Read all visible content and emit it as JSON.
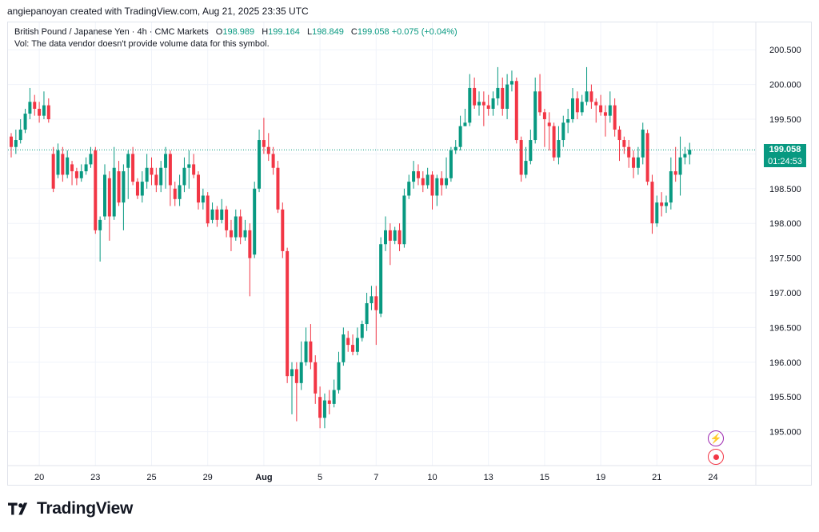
{
  "header": {
    "created": "angiepanoyan created with TradingView.com, Aug 21, 2025 23:35 UTC"
  },
  "legend": {
    "symbol": "British Pound / Japanese Yen · 4h · CMC Markets",
    "open_label": "O",
    "open": "198.989",
    "high_label": "H",
    "high": "199.164",
    "low_label": "L",
    "low": "198.849",
    "close_label": "C",
    "close": "199.058",
    "change": "+0.075 (+0.04%)",
    "volume_note": "Vol: The data vendor doesn't provide volume data for this symbol."
  },
  "price_tag": {
    "price": "199.058",
    "timer": "01:24:53"
  },
  "logo": {
    "text": "TradingView"
  },
  "icons": {
    "alert": "flash-icon",
    "record": "record-icon"
  },
  "colors": {
    "up": "#089981",
    "down": "#f23645",
    "grid": "#f0f3fa",
    "text": "#131722"
  },
  "chart_data": {
    "type": "candlestick",
    "title": "British Pound / Japanese Yen · 4h · CMC Markets",
    "ylim": [
      194.6,
      200.8
    ],
    "y_ticks": [
      "200.500",
      "200.000",
      "199.500",
      "199.000",
      "198.500",
      "198.000",
      "197.500",
      "197.000",
      "196.500",
      "196.000",
      "195.500",
      "195.000"
    ],
    "x_ticks": [
      {
        "label": "20",
        "t": 6
      },
      {
        "label": "23",
        "t": 18
      },
      {
        "label": "25",
        "t": 30
      },
      {
        "label": "29",
        "t": 42
      },
      {
        "label": "Aug",
        "t": 54
      },
      {
        "label": "5",
        "t": 66
      },
      {
        "label": "7",
        "t": 78
      },
      {
        "label": "10",
        "t": 90
      },
      {
        "label": "13",
        "t": 102
      },
      {
        "label": "15",
        "t": 114
      },
      {
        "label": "19",
        "t": 126
      },
      {
        "label": "21",
        "t": 138
      },
      {
        "label": "24",
        "t": 150
      }
    ],
    "last_price": 199.058,
    "candles": [
      [
        199.25,
        199.1,
        199.3,
        198.95
      ],
      [
        199.1,
        199.2,
        199.35,
        199.0
      ],
      [
        199.2,
        199.35,
        199.5,
        199.15
      ],
      [
        199.35,
        199.58,
        199.65,
        199.3
      ],
      [
        199.58,
        199.75,
        199.95,
        199.5
      ],
      [
        199.75,
        199.65,
        199.85,
        199.55
      ],
      [
        199.65,
        199.55,
        199.75,
        199.45
      ],
      [
        199.55,
        199.7,
        199.9,
        199.5
      ],
      [
        199.7,
        199.5,
        199.8,
        199.45
      ],
      [
        199.0,
        198.5,
        199.1,
        198.45
      ],
      [
        198.7,
        199.05,
        199.15,
        198.65
      ],
      [
        199.0,
        198.7,
        199.1,
        198.6
      ],
      [
        198.7,
        198.95,
        199.05,
        198.65
      ],
      [
        198.85,
        198.75,
        198.9,
        198.55
      ],
      [
        198.75,
        198.65,
        198.8,
        198.55
      ],
      [
        198.65,
        198.75,
        198.85,
        198.6
      ],
      [
        198.75,
        198.85,
        198.95,
        198.7
      ],
      [
        198.85,
        199.0,
        199.1,
        198.8
      ],
      [
        199.05,
        197.9,
        199.1,
        197.85
      ],
      [
        197.9,
        198.05,
        198.1,
        197.45
      ],
      [
        198.1,
        198.7,
        198.85,
        198.05
      ],
      [
        198.65,
        198.1,
        198.75,
        197.75
      ],
      [
        198.1,
        198.8,
        199.1,
        198.05
      ],
      [
        198.75,
        198.3,
        198.9,
        198.25
      ],
      [
        198.3,
        198.75,
        198.85,
        197.9
      ],
      [
        198.8,
        199.0,
        199.05,
        198.35
      ],
      [
        199.0,
        198.6,
        199.1,
        198.55
      ],
      [
        198.6,
        198.4,
        198.65,
        198.35
      ],
      [
        198.4,
        198.6,
        198.75,
        198.3
      ],
      [
        198.6,
        198.8,
        199.0,
        198.5
      ],
      [
        198.8,
        198.7,
        198.95,
        198.55
      ],
      [
        198.7,
        198.55,
        198.8,
        198.45
      ],
      [
        198.55,
        198.8,
        198.9,
        198.45
      ],
      [
        198.8,
        199.0,
        199.1,
        198.5
      ],
      [
        199.0,
        198.55,
        199.05,
        198.25
      ],
      [
        198.5,
        198.35,
        198.6,
        198.25
      ],
      [
        198.35,
        198.55,
        198.7,
        198.25
      ],
      [
        198.55,
        198.8,
        198.95,
        198.45
      ],
      [
        198.8,
        198.85,
        199.05,
        198.5
      ],
      [
        198.85,
        198.7,
        199.0,
        198.65
      ],
      [
        198.7,
        198.3,
        198.75,
        198.2
      ],
      [
        198.3,
        198.4,
        198.5,
        198.2
      ],
      [
        198.4,
        198.0,
        198.45,
        197.95
      ],
      [
        198.05,
        198.2,
        198.3,
        198.0
      ],
      [
        198.2,
        198.05,
        198.25,
        197.95
      ],
      [
        198.05,
        198.2,
        198.35,
        198.0
      ],
      [
        198.2,
        197.9,
        198.25,
        197.8
      ],
      [
        197.9,
        197.8,
        198.05,
        197.6
      ],
      [
        197.8,
        198.1,
        198.2,
        197.75
      ],
      [
        198.1,
        197.8,
        198.2,
        197.7
      ],
      [
        197.8,
        197.9,
        198.05,
        197.75
      ],
      [
        197.9,
        197.5,
        198.0,
        196.95
      ],
      [
        197.55,
        198.5,
        198.6,
        197.5
      ],
      [
        198.5,
        199.2,
        199.35,
        198.45
      ],
      [
        199.2,
        199.1,
        199.52,
        199.0
      ],
      [
        199.1,
        199.0,
        199.3,
        198.9
      ],
      [
        199.0,
        198.8,
        199.1,
        198.7
      ],
      [
        198.8,
        198.2,
        198.9,
        198.15
      ],
      [
        198.2,
        197.6,
        198.3,
        197.5
      ],
      [
        197.6,
        195.8,
        197.65,
        195.7
      ],
      [
        195.8,
        195.9,
        196.0,
        195.25
      ],
      [
        195.9,
        195.7,
        196.0,
        195.15
      ],
      [
        195.7,
        196.0,
        196.3,
        195.6
      ],
      [
        196.0,
        196.3,
        196.5,
        195.95
      ],
      [
        196.3,
        196.0,
        196.55,
        195.9
      ],
      [
        196.0,
        195.55,
        196.1,
        195.4
      ],
      [
        195.5,
        195.2,
        195.65,
        195.05
      ],
      [
        195.2,
        195.45,
        195.55,
        195.05
      ],
      [
        195.45,
        195.4,
        195.6,
        195.25
      ],
      [
        195.4,
        195.6,
        195.75,
        195.35
      ],
      [
        195.6,
        196.0,
        196.15,
        195.55
      ],
      [
        196.0,
        196.4,
        196.5,
        195.95
      ],
      [
        196.35,
        196.25,
        196.45,
        196.15
      ],
      [
        196.25,
        196.15,
        196.4,
        196.1
      ],
      [
        196.15,
        196.35,
        196.5,
        196.1
      ],
      [
        196.35,
        196.55,
        196.6,
        196.3
      ],
      [
        196.55,
        196.85,
        197.0,
        196.45
      ],
      [
        196.85,
        196.95,
        197.1,
        196.75
      ],
      [
        196.95,
        196.75,
        197.1,
        196.25
      ],
      [
        196.7,
        197.7,
        197.8,
        196.65
      ],
      [
        197.7,
        197.9,
        198.1,
        197.6
      ],
      [
        197.9,
        197.75,
        198.0,
        197.4
      ],
      [
        197.75,
        197.9,
        197.95,
        197.7
      ],
      [
        197.9,
        197.7,
        198.0,
        197.6
      ],
      [
        197.7,
        198.4,
        198.5,
        197.65
      ],
      [
        198.4,
        198.6,
        198.7,
        198.35
      ],
      [
        198.6,
        198.75,
        198.9,
        198.5
      ],
      [
        198.75,
        198.65,
        198.85,
        198.55
      ],
      [
        198.65,
        198.55,
        198.75,
        198.45
      ],
      [
        198.55,
        198.7,
        198.8,
        198.5
      ],
      [
        198.7,
        198.4,
        198.75,
        198.2
      ],
      [
        198.4,
        198.65,
        198.7,
        198.25
      ],
      [
        198.65,
        198.55,
        198.75,
        198.4
      ],
      [
        198.55,
        198.65,
        198.95,
        198.5
      ],
      [
        198.65,
        199.05,
        199.1,
        198.6
      ],
      [
        199.05,
        199.1,
        199.2,
        199.0
      ],
      [
        199.1,
        199.4,
        199.55,
        199.05
      ],
      [
        199.4,
        199.45,
        199.65,
        199.4
      ],
      [
        199.45,
        199.95,
        200.15,
        199.4
      ],
      [
        199.95,
        199.7,
        200.1,
        199.65
      ],
      [
        199.7,
        199.75,
        199.9,
        199.55
      ],
      [
        199.75,
        199.7,
        199.9,
        199.4
      ],
      [
        199.7,
        199.65,
        199.85,
        199.55
      ],
      [
        199.65,
        199.8,
        199.9,
        199.55
      ],
      [
        199.8,
        199.95,
        200.25,
        199.7
      ],
      [
        199.95,
        199.65,
        200.1,
        199.55
      ],
      [
        199.65,
        200.0,
        200.15,
        199.5
      ],
      [
        200.0,
        200.05,
        200.2,
        199.9
      ],
      [
        200.05,
        199.2,
        200.1,
        199.15
      ],
      [
        199.2,
        198.7,
        199.25,
        198.6
      ],
      [
        198.7,
        198.9,
        199.1,
        198.65
      ],
      [
        198.9,
        199.2,
        199.35,
        198.85
      ],
      [
        199.2,
        199.9,
        200.1,
        199.15
      ],
      [
        199.9,
        199.6,
        200.15,
        199.55
      ],
      [
        199.6,
        199.5,
        199.65,
        199.1
      ],
      [
        199.45,
        199.4,
        199.6,
        199.05
      ],
      [
        199.4,
        198.95,
        199.45,
        198.9
      ],
      [
        198.95,
        199.2,
        199.4,
        198.85
      ],
      [
        199.2,
        199.45,
        199.55,
        199.1
      ],
      [
        199.45,
        199.5,
        199.65,
        199.3
      ],
      [
        199.5,
        199.8,
        199.95,
        199.45
      ],
      [
        199.8,
        199.6,
        199.9,
        199.5
      ],
      [
        199.6,
        199.75,
        199.85,
        199.55
      ],
      [
        199.75,
        199.9,
        200.25,
        199.7
      ],
      [
        199.9,
        199.75,
        200.0,
        199.65
      ],
      [
        199.75,
        199.7,
        199.8,
        199.45
      ],
      [
        199.7,
        199.6,
        199.85,
        199.55
      ],
      [
        199.6,
        199.55,
        199.7,
        199.25
      ],
      [
        199.55,
        199.7,
        199.9,
        199.45
      ],
      [
        199.7,
        199.35,
        199.8,
        199.25
      ],
      [
        199.35,
        199.2,
        199.4,
        198.9
      ],
      [
        199.2,
        199.1,
        199.25,
        199.0
      ],
      [
        199.1,
        198.95,
        199.2,
        198.8
      ],
      [
        198.95,
        198.8,
        199.05,
        198.65
      ],
      [
        198.8,
        198.95,
        199.1,
        198.7
      ],
      [
        198.95,
        199.35,
        199.45,
        198.85
      ],
      [
        199.3,
        198.6,
        199.35,
        198.55
      ],
      [
        198.6,
        198.0,
        198.7,
        197.85
      ],
      [
        198.0,
        198.3,
        198.4,
        197.95
      ],
      [
        198.3,
        198.25,
        198.45,
        198.1
      ],
      [
        198.25,
        198.3,
        198.4,
        198.15
      ],
      [
        198.3,
        198.75,
        198.95,
        198.2
      ],
      [
        198.75,
        198.7,
        199.1,
        198.6
      ],
      [
        198.7,
        198.95,
        199.25,
        198.4
      ],
      [
        198.95,
        199.0,
        199.1,
        198.85
      ],
      [
        198.99,
        199.06,
        199.16,
        198.85
      ]
    ]
  }
}
